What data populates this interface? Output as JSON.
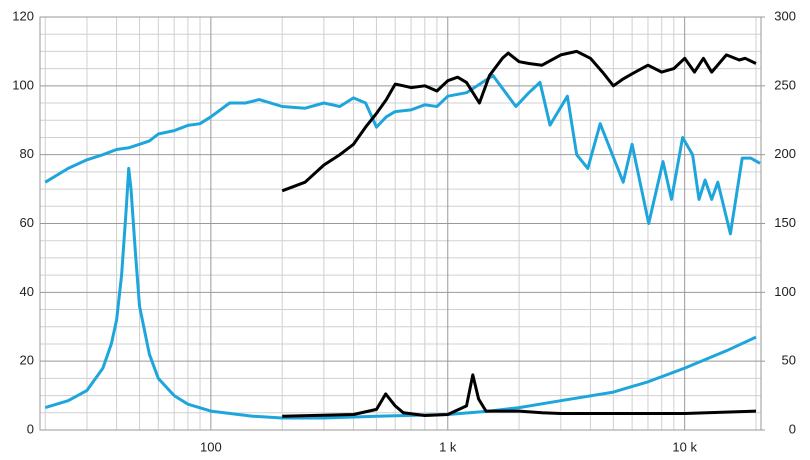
{
  "chart_data": {
    "type": "line",
    "xlog": true,
    "xlim": [
      19,
      21000
    ],
    "xticks": [
      100,
      {
        "value": 1000,
        "label": "1 k"
      },
      {
        "value": 10000,
        "label": "10 k"
      }
    ],
    "xminorticks": [
      20,
      30,
      40,
      50,
      60,
      70,
      80,
      90,
      200,
      300,
      400,
      500,
      600,
      700,
      800,
      900,
      2000,
      3000,
      4000,
      5000,
      6000,
      7000,
      8000,
      9000,
      20000
    ],
    "ylim": [
      0,
      120
    ],
    "yticks": [
      0,
      20,
      40,
      60,
      80,
      100,
      120
    ],
    "yminorticks": [
      5,
      10,
      15,
      25,
      30,
      35,
      45,
      50,
      55,
      65,
      70,
      75,
      85,
      90,
      95,
      105,
      110,
      115
    ],
    "y2lim": [
      0,
      300
    ],
    "y2ticks": [
      0,
      50,
      100,
      150,
      200,
      250,
      300
    ],
    "grid": true,
    "series": [
      {
        "color": "#1ea6dc",
        "x": [
          20,
          25,
          30,
          35,
          40,
          45,
          50,
          55,
          60,
          70,
          80,
          90,
          100,
          120,
          140,
          160,
          200,
          250,
          300,
          350,
          400,
          450,
          500,
          550,
          600,
          700,
          800,
          900,
          1000,
          1200,
          1400,
          1550,
          1940,
          2200,
          2450,
          2700,
          3200,
          3500,
          3900,
          4400,
          5500,
          6000,
          7050,
          8100,
          8800,
          9800,
          10800,
          11500,
          12200,
          13000,
          13800,
          15600,
          17500,
          19000,
          20800
        ],
        "values": [
          72,
          76,
          78.5,
          80,
          81.5,
          82,
          83,
          84,
          86,
          87,
          88.5,
          89,
          91,
          95,
          95,
          96,
          94,
          93.5,
          95,
          94,
          96.5,
          95,
          88,
          91,
          92.5,
          93,
          94.5,
          94,
          97,
          98,
          101,
          103,
          94,
          98,
          101,
          88.6,
          97,
          80,
          76,
          89,
          72,
          83,
          60,
          78,
          67,
          85,
          80,
          67,
          72.6,
          67,
          72,
          57,
          79,
          79,
          77.5
        ]
      },
      {
        "color": "#000000",
        "x": [
          200,
          250,
          300,
          350,
          400,
          450,
          500,
          550,
          600,
          650,
          700,
          800,
          900,
          1000,
          1100,
          1200,
          1360,
          1500,
          1700,
          1800,
          2000,
          2200,
          2500,
          3000,
          3500,
          4000,
          4500,
          5000,
          5500,
          6000,
          7000,
          8000,
          9000,
          10000,
          11000,
          12000,
          13000,
          15000,
          17000,
          18000,
          20000
        ],
        "values": [
          69.5,
          72,
          77,
          80,
          83,
          88,
          92,
          96,
          100.5,
          100,
          99.5,
          100,
          98.5,
          101.5,
          102.5,
          101,
          95,
          103,
          108,
          109.5,
          107,
          106.5,
          106,
          109,
          110,
          108,
          104,
          100,
          102,
          103.5,
          106,
          104,
          105,
          108,
          104,
          108,
          104,
          109,
          107.5,
          108,
          106.5
        ]
      },
      {
        "color": "#1ea6dc",
        "x": [
          20,
          25,
          30,
          35,
          38,
          40,
          42,
          44,
          45,
          46,
          48,
          50,
          55,
          60,
          70,
          80,
          100,
          150,
          200,
          300,
          500,
          1000,
          1500,
          2000,
          3000,
          5000,
          7000,
          10000,
          15000,
          20000
        ],
        "values": [
          6.5,
          8.5,
          11.5,
          18,
          25,
          32,
          45,
          65,
          76,
          70,
          52,
          36,
          22,
          15,
          10,
          7.5,
          5.5,
          4,
          3.5,
          3.5,
          4,
          4.5,
          5.5,
          6.5,
          8.5,
          11,
          14,
          18,
          23,
          27
        ]
      },
      {
        "color": "#000000",
        "x": [
          200,
          400,
          500,
          547,
          600,
          650,
          800,
          1000,
          1200,
          1275,
          1350,
          1450,
          2000,
          2500,
          3000,
          10000,
          20000
        ],
        "values": [
          4,
          4.5,
          6,
          10.5,
          7,
          5,
          4.2,
          4.5,
          7,
          16,
          9,
          5.5,
          5.5,
          5,
          4.8,
          4.8,
          5.5
        ]
      }
    ]
  }
}
